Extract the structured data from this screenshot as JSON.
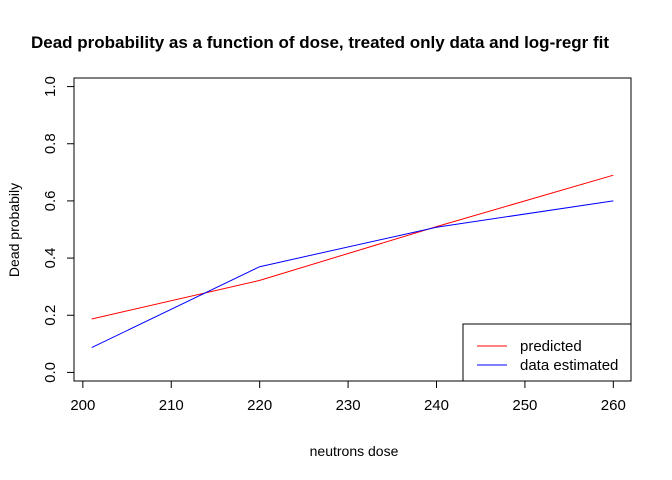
{
  "chart_data": {
    "type": "line",
    "title": "Dead probability as a function of dose, treated only data and log-regr fit",
    "xlabel": "neutrons dose",
    "ylabel": "Dead probabily",
    "xlim": [
      199,
      262
    ],
    "ylim": [
      -0.03,
      1.03
    ],
    "xticks": [
      200,
      210,
      220,
      230,
      240,
      250,
      260
    ],
    "yticks": [
      0.0,
      0.2,
      0.4,
      0.6,
      0.8,
      1.0
    ],
    "xtick_labels": [
      "200",
      "210",
      "220",
      "230",
      "240",
      "250",
      "260"
    ],
    "ytick_labels": [
      "0.0",
      "0.2",
      "0.4",
      "0.6",
      "0.8",
      "1.0"
    ],
    "grid": false,
    "legend_position": "bottom-right",
    "series": [
      {
        "name": "predicted",
        "color": "#ff0000",
        "x": [
          201,
          220,
          240,
          260
        ],
        "y": [
          0.187,
          0.322,
          0.51,
          0.69
        ]
      },
      {
        "name": "data estimated",
        "color": "#0000ff",
        "x": [
          201,
          220,
          240,
          260
        ],
        "y": [
          0.087,
          0.37,
          0.508,
          0.6
        ]
      }
    ]
  }
}
